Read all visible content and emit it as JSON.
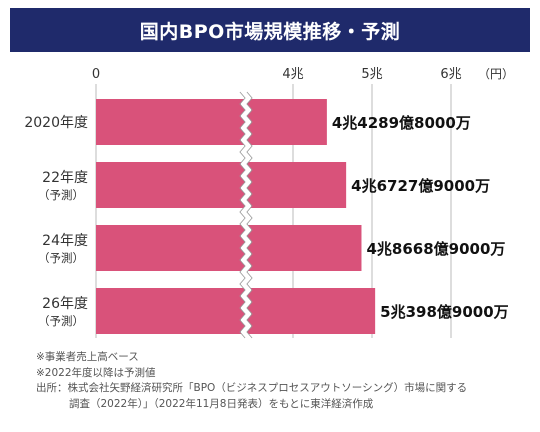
{
  "title": "国内BPO市場規模推移・予測",
  "colors": {
    "header_bg": "#1f2a6b",
    "bar": "#d9527a",
    "grid": "#bbbbbb"
  },
  "chart_data": {
    "type": "bar",
    "orientation": "horizontal",
    "axis_break": true,
    "unit_label": "（円）",
    "ticks": [
      {
        "value": 0,
        "label": "0"
      },
      {
        "value": 4,
        "label": "4兆"
      },
      {
        "value": 5,
        "label": "5兆"
      },
      {
        "value": 6,
        "label": "6兆"
      }
    ],
    "grid": true,
    "categories": [
      {
        "label": "2020年度",
        "sub": ""
      },
      {
        "label": "22年度",
        "sub": "（予測）"
      },
      {
        "label": "24年度",
        "sub": "（予測）"
      },
      {
        "label": "26年度",
        "sub": "（予測）"
      }
    ],
    "values": [
      4.4289,
      4.6727,
      4.8668,
      5.0398
    ],
    "value_labels": [
      "4兆4289億8000万",
      "4兆6727億9000万",
      "4兆8668億9000万",
      "5兆398億9000万"
    ]
  },
  "notes": {
    "line1": "※事業者売上高ベース",
    "line2": "※2022年度以降は予測値",
    "line3": "出所：株式会社矢野経済研究所「BPO（ビジネスプロセスアウトソーシング）市場に関する",
    "line4": "調査（2022年）」（2022年11月8日発表）をもとに東洋経済作成"
  }
}
